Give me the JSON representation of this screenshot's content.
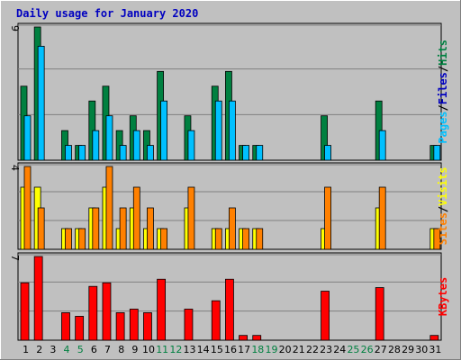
{
  "chart_data": [
    {
      "type": "bar",
      "title": "Daily usage for January 2020",
      "categories": [
        "1",
        "2",
        "3",
        "4",
        "5",
        "6",
        "7",
        "8",
        "9",
        "10",
        "11",
        "12",
        "13",
        "14",
        "15",
        "16",
        "17",
        "18",
        "19",
        "20",
        "21",
        "22",
        "23",
        "24",
        "25",
        "26",
        "27",
        "28",
        "29",
        "30",
        "31"
      ],
      "weekend_days": [
        "4",
        "5",
        "11",
        "12",
        "18",
        "19",
        "25",
        "26"
      ],
      "ylabel_parts": [
        "Pages",
        "/",
        "Files",
        "/",
        "Hits"
      ],
      "ylim": [
        0,
        9
      ],
      "max_label": "9",
      "series": [
        {
          "name": "Hits",
          "color": "#008040",
          "values": [
            5,
            9,
            0,
            2,
            1,
            4,
            5,
            2,
            3,
            2,
            6,
            0,
            3,
            0,
            5,
            6,
            1,
            1,
            0,
            0,
            0,
            0,
            3,
            0,
            0,
            0,
            4,
            0,
            0,
            0,
            1
          ]
        },
        {
          "name": "Files",
          "color": "#00C0FF",
          "values": [
            3,
            7.7,
            0,
            1,
            1,
            2,
            3,
            1,
            2,
            1,
            4,
            0,
            2,
            0,
            4,
            4,
            1,
            1,
            0,
            0,
            0,
            0,
            1,
            0,
            0,
            0,
            2,
            0,
            0,
            0,
            1
          ]
        }
      ]
    },
    {
      "type": "bar",
      "categories": [
        "1",
        "2",
        "3",
        "4",
        "5",
        "6",
        "7",
        "8",
        "9",
        "10",
        "11",
        "12",
        "13",
        "14",
        "15",
        "16",
        "17",
        "18",
        "19",
        "20",
        "21",
        "22",
        "23",
        "24",
        "25",
        "26",
        "27",
        "28",
        "29",
        "30",
        "31"
      ],
      "ylabel_parts": [
        "Sites",
        "/",
        "Visits"
      ],
      "ylim": [
        0,
        4
      ],
      "max_label": "4",
      "series": [
        {
          "name": "Visits",
          "color": "#FFFF00",
          "values": [
            3,
            3,
            0,
            1,
            1,
            2,
            3,
            1,
            2,
            1,
            1,
            0,
            2,
            0,
            1,
            1,
            1,
            1,
            0,
            0,
            0,
            0,
            1,
            0,
            0,
            0,
            2,
            0,
            0,
            0,
            1
          ]
        },
        {
          "name": "Sites",
          "color": "#FF8000",
          "values": [
            4,
            2,
            0,
            1,
            1,
            2,
            4,
            2,
            3,
            2,
            1,
            0,
            3,
            0,
            1,
            2,
            1,
            1,
            0,
            0,
            0,
            0,
            3,
            0,
            0,
            0,
            3,
            0,
            0,
            0,
            1
          ]
        }
      ]
    },
    {
      "type": "bar",
      "categories": [
        "1",
        "2",
        "3",
        "4",
        "5",
        "6",
        "7",
        "8",
        "9",
        "10",
        "11",
        "12",
        "13",
        "14",
        "15",
        "16",
        "17",
        "18",
        "19",
        "20",
        "21",
        "22",
        "23",
        "24",
        "25",
        "26",
        "27",
        "28",
        "29",
        "30",
        "31"
      ],
      "ylabel_parts": [
        "KBytes"
      ],
      "ylim": [
        0,
        7
      ],
      "max_label": "7",
      "series": [
        {
          "name": "KBytes",
          "color": "#FF0000",
          "values": [
            4.8,
            7,
            0,
            2.3,
            2,
            4.5,
            4.8,
            2.3,
            2.6,
            2.3,
            5.1,
            0,
            2.6,
            0,
            3.3,
            5.1,
            0.4,
            0.4,
            0,
            0,
            0,
            0,
            4.1,
            0,
            0,
            0,
            4.4,
            0,
            0,
            0,
            0.4
          ]
        }
      ]
    }
  ],
  "colors": {
    "background": "#C0C0C0",
    "plot_bg": "#C0C0C0",
    "grid": "#808080",
    "title": "#0000C0",
    "weekday_tick": "#000000",
    "weekend_tick": "#008040",
    "separator": "#808080"
  }
}
